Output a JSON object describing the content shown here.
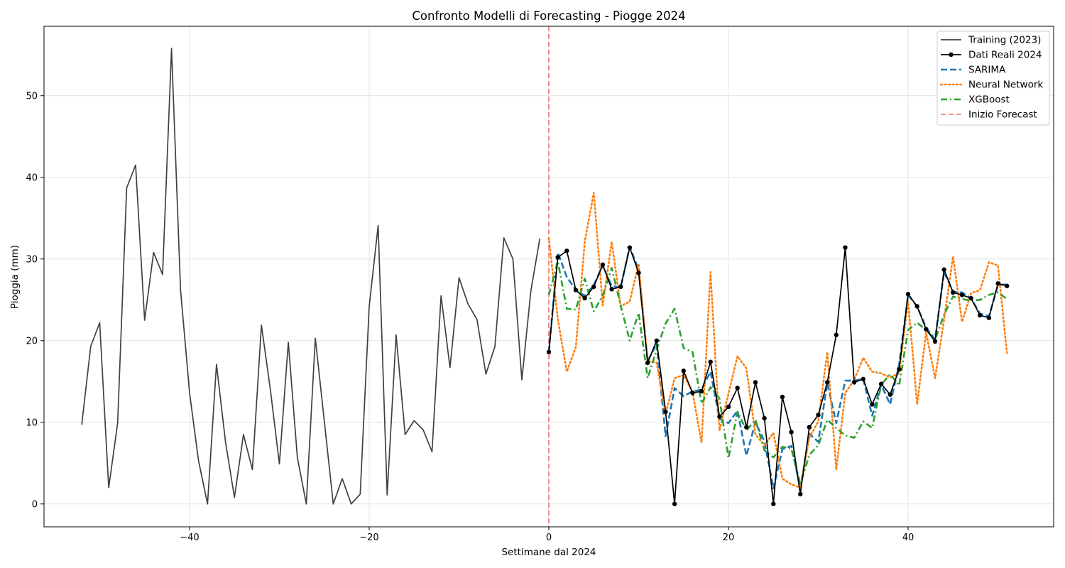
{
  "chart_data": {
    "type": "line",
    "title": "Confronto Modelli di Forecasting - Piogge 2024",
    "xlabel": "Settimane dal 2024",
    "ylabel": "Pioggia (mm)",
    "xlim": [
      -56.2,
      56.2
    ],
    "ylim": [
      -2.8,
      58.5
    ],
    "x_ticks": [
      -40,
      -20,
      0,
      20,
      40
    ],
    "y_ticks": [
      0,
      10,
      20,
      30,
      40,
      50
    ],
    "grid": true,
    "legend_position": "top-right",
    "vertical_line": {
      "name": "Inizio Forecast",
      "x": 0,
      "color": "#f07070"
    },
    "series": [
      {
        "name": "Training (2023)",
        "color": "#404040",
        "style": "solid",
        "markers": false,
        "x": [
          -52,
          -51,
          -50,
          -49,
          -48,
          -47,
          -46,
          -45,
          -44,
          -43,
          -42,
          -41,
          -40,
          -39,
          -38,
          -37,
          -36,
          -35,
          -34,
          -33,
          -32,
          -31,
          -30,
          -29,
          -28,
          -27,
          -26,
          -25,
          -24,
          -23,
          -22,
          -21,
          -20,
          -19,
          -18,
          -17,
          -16,
          -15,
          -14,
          -13,
          -12,
          -11,
          -10,
          -9,
          -8,
          -7,
          -6,
          -5,
          -4,
          -3,
          -2,
          -1
        ],
        "y": [
          9.7,
          19.3,
          22.2,
          2.0,
          9.9,
          38.7,
          41.5,
          22.5,
          30.8,
          28.1,
          55.8,
          26.2,
          13.6,
          5.3,
          0.0,
          17.1,
          7.6,
          0.8,
          8.5,
          4.2,
          21.9,
          14.0,
          4.9,
          19.8,
          5.7,
          0.0,
          20.3,
          10.2,
          0.0,
          3.1,
          0.0,
          1.2,
          24.2,
          34.1,
          1.1,
          20.7,
          8.5,
          10.2,
          9.1,
          6.4,
          25.5,
          16.7,
          27.7,
          24.5,
          22.6,
          15.9,
          19.3,
          32.6,
          30.0,
          15.2,
          26.1,
          32.5
        ]
      },
      {
        "name": "Dati Reali 2024",
        "color": "#000000",
        "style": "solid",
        "markers": true,
        "x": [
          0,
          1,
          2,
          3,
          4,
          5,
          6,
          7,
          8,
          9,
          10,
          11,
          12,
          13,
          14,
          15,
          16,
          17,
          18,
          19,
          20,
          21,
          22,
          23,
          24,
          25,
          26,
          27,
          28,
          29,
          30,
          31,
          32,
          33,
          34,
          35,
          36,
          37,
          38,
          39,
          40,
          41,
          42,
          43,
          44,
          45,
          46,
          47,
          48,
          49,
          50,
          51
        ],
        "y": [
          18.6,
          30.2,
          31.0,
          26.2,
          25.2,
          26.6,
          29.3,
          26.3,
          26.6,
          31.4,
          28.3,
          17.3,
          20.0,
          11.3,
          0.0,
          16.3,
          13.6,
          13.8,
          17.4,
          10.7,
          11.9,
          14.2,
          9.4,
          14.9,
          10.5,
          0.0,
          13.1,
          8.8,
          1.2,
          9.4,
          10.9,
          14.9,
          20.7,
          31.4,
          14.9,
          15.3,
          12.2,
          14.7,
          13.4,
          16.5,
          25.7,
          24.2,
          21.4,
          19.9,
          28.7,
          25.9,
          25.6,
          25.2,
          23.1,
          22.8,
          27.0,
          26.7
        ]
      },
      {
        "name": "SARIMA",
        "color": "#1f77b4",
        "style": "dashed",
        "markers": false,
        "x": [
          0,
          1,
          2,
          3,
          4,
          5,
          6,
          7,
          8,
          9,
          10,
          11,
          12,
          13,
          14,
          15,
          16,
          17,
          18,
          19,
          20,
          21,
          22,
          23,
          24,
          25,
          26,
          27,
          28,
          29,
          30,
          31,
          32,
          33,
          34,
          35,
          36,
          37,
          38,
          39,
          40,
          41,
          42,
          43,
          44,
          45,
          46,
          47,
          48,
          49,
          50,
          51
        ],
        "y": [
          18.6,
          30.8,
          27.8,
          26.2,
          25.5,
          26.8,
          29.2,
          26.7,
          26.5,
          31.5,
          28.7,
          17.5,
          19.6,
          8.3,
          14.2,
          13.2,
          13.8,
          14.0,
          16.2,
          10.4,
          9.9,
          11.4,
          5.9,
          10.0,
          7.7,
          1.9,
          6.7,
          7.1,
          1.9,
          8.6,
          7.6,
          14.8,
          9.9,
          15.1,
          15.1,
          15.3,
          10.8,
          14.6,
          12.2,
          17.1,
          25.6,
          24.2,
          21.6,
          20.2,
          28.4,
          26.0,
          25.9,
          25.2,
          23.3,
          23.0,
          26.8,
          26.9
        ]
      },
      {
        "name": "Neural Network",
        "color": "#ff7f0e",
        "style": "dotted",
        "markers": false,
        "x": [
          0,
          1,
          2,
          3,
          4,
          5,
          6,
          7,
          8,
          9,
          10,
          11,
          12,
          13,
          14,
          15,
          16,
          17,
          18,
          19,
          20,
          21,
          22,
          23,
          24,
          25,
          26,
          27,
          28,
          29,
          30,
          31,
          32,
          33,
          34,
          35,
          36,
          37,
          38,
          39,
          40,
          41,
          42,
          43,
          44,
          45,
          46,
          47,
          48,
          49,
          50,
          51
        ],
        "y": [
          32.6,
          22.6,
          16.2,
          19.2,
          32.1,
          38.1,
          24.3,
          32.1,
          24.2,
          24.8,
          29.4,
          17.5,
          17.3,
          11.0,
          15.4,
          15.8,
          13.7,
          7.5,
          28.4,
          9.0,
          13.5,
          18.1,
          16.6,
          8.5,
          7.2,
          8.7,
          3.1,
          2.4,
          2.0,
          8.1,
          10.1,
          18.6,
          4.2,
          13.6,
          15.2,
          17.9,
          16.2,
          16.0,
          15.5,
          16.0,
          24.9,
          12.2,
          21.0,
          15.4,
          22.6,
          30.3,
          22.3,
          25.8,
          26.2,
          29.6,
          29.2,
          18.5
        ]
      },
      {
        "name": "XGBoost",
        "color": "#2ca02c",
        "style": "dashdot",
        "markers": false,
        "x": [
          0,
          1,
          2,
          3,
          4,
          5,
          6,
          7,
          8,
          9,
          10,
          11,
          12,
          13,
          14,
          15,
          16,
          17,
          18,
          19,
          20,
          21,
          22,
          23,
          24,
          25,
          26,
          27,
          28,
          29,
          30,
          31,
          32,
          33,
          34,
          35,
          36,
          37,
          38,
          39,
          40,
          41,
          42,
          43,
          44,
          45,
          46,
          47,
          48,
          49,
          50,
          51
        ],
        "y": [
          25.6,
          29.7,
          23.9,
          23.8,
          27.6,
          23.6,
          25.5,
          28.9,
          24.3,
          20.0,
          23.4,
          15.4,
          18.9,
          22.1,
          23.9,
          19.1,
          18.6,
          12.3,
          14.3,
          12.9,
          5.6,
          11.3,
          9.0,
          10.3,
          6.6,
          5.7,
          7.0,
          6.8,
          2.4,
          6.0,
          7.2,
          10.3,
          9.3,
          8.4,
          8.1,
          10.1,
          9.3,
          14.6,
          15.9,
          14.5,
          21.3,
          22.2,
          21.3,
          20.1,
          23.2,
          25.4,
          25.1,
          24.9,
          25.0,
          25.6,
          25.9,
          25.1
        ]
      }
    ]
  }
}
